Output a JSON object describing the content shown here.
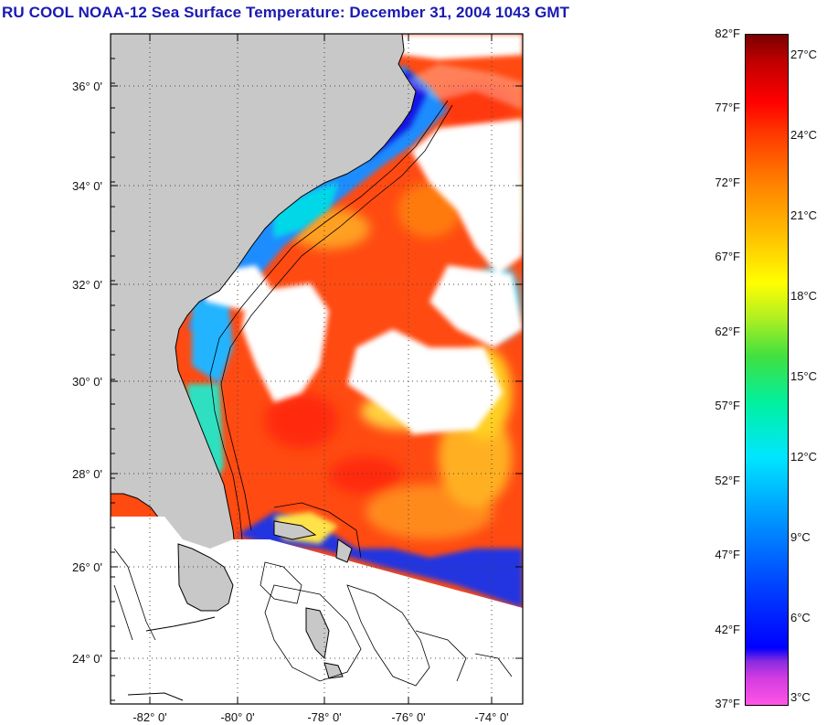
{
  "title": "RU COOL  NOAA-12  Sea Surface Temperature:  December 31, 2004 1043 GMT",
  "map": {
    "lat_ticks": [
      {
        "label": "36° 0'",
        "value": 36
      },
      {
        "label": "34° 0'",
        "value": 34
      },
      {
        "label": "32° 0'",
        "value": 32
      },
      {
        "label": "30° 0'",
        "value": 30
      },
      {
        "label": "28° 0'",
        "value": 28
      },
      {
        "label": "26° 0'",
        "value": 26
      },
      {
        "label": "24° 0'",
        "value": 24
      }
    ],
    "lon_ticks": [
      {
        "label": "-82° 0'",
        "value": -82
      },
      {
        "label": "-80° 0'",
        "value": -80
      },
      {
        "label": "-78° 0'",
        "value": -78
      },
      {
        "label": "-76° 0'",
        "value": -76
      },
      {
        "label": "-74° 0'",
        "value": -74
      }
    ],
    "lat_range": [
      23,
      37
    ],
    "lon_range": [
      -83,
      -73
    ],
    "grid": "dotted",
    "colors": {
      "land": "#c8c8c8",
      "cloud": "#ffffff",
      "warm": "#ff4a12",
      "cool": "#1a8cff",
      "cold": "#1414e6"
    }
  },
  "colorbar": {
    "fahrenheit": [
      "82°F",
      "77°F",
      "72°F",
      "67°F",
      "62°F",
      "57°F",
      "52°F",
      "47°F",
      "42°F",
      "37°F"
    ],
    "celsius": [
      "27°C",
      "24°C",
      "21°C",
      "18°C",
      "15°C",
      "12°C",
      "9°C",
      "6°C",
      "3°C"
    ]
  }
}
